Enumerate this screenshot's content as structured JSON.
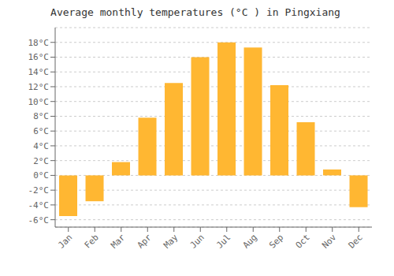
{
  "chart_data": {
    "type": "bar",
    "title": "Average monthly temperatures (°C ) in Pingxiang",
    "categories": [
      "Jan",
      "Feb",
      "Mar",
      "Apr",
      "May",
      "Jun",
      "Jul",
      "Aug",
      "Sep",
      "Oct",
      "Nov",
      "Dec"
    ],
    "values": [
      -5.5,
      -3.5,
      1.8,
      7.8,
      12.5,
      16.0,
      18.0,
      17.3,
      12.2,
      7.2,
      0.8,
      -4.3
    ],
    "color": "#FFB732",
    "ylim": [
      -7,
      20
    ],
    "yticks": [
      {
        "value": -6,
        "label": "-6°C"
      },
      {
        "value": -4,
        "label": "-4°C"
      },
      {
        "value": -2,
        "label": "-2°C"
      },
      {
        "value": 0,
        "label": "0°C"
      },
      {
        "value": 2,
        "label": "2°C"
      },
      {
        "value": 4,
        "label": "4°C"
      },
      {
        "value": 6,
        "label": "6°C"
      },
      {
        "value": 8,
        "label": "8°C"
      },
      {
        "value": 10,
        "label": "10°C"
      },
      {
        "value": 12,
        "label": "12°C"
      },
      {
        "value": 14,
        "label": "14°C"
      },
      {
        "value": 16,
        "label": "16°C"
      },
      {
        "value": 18,
        "label": "18°C"
      }
    ],
    "grid": true
  }
}
